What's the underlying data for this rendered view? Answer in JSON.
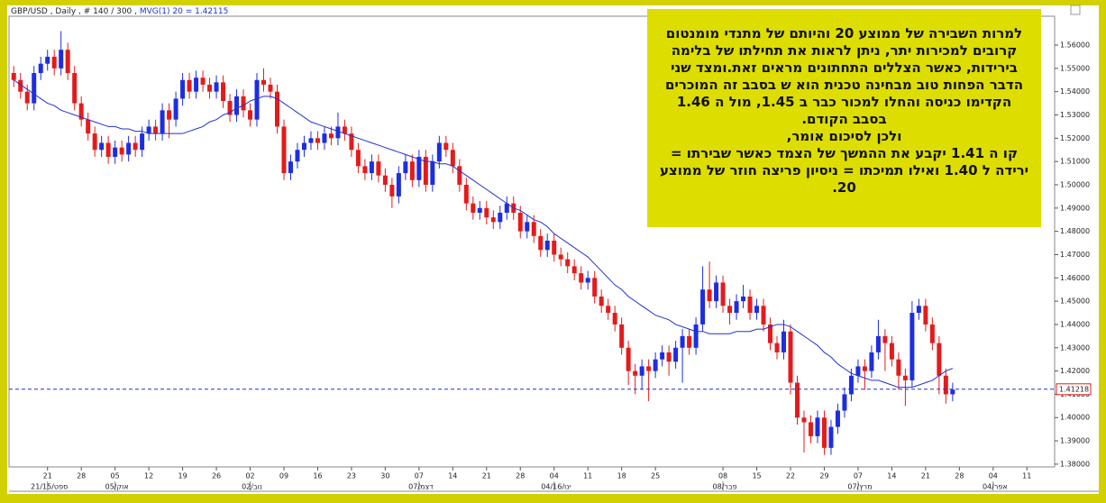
{
  "chart_data": {
    "type": "candlestick",
    "header": "GBP/USD , Daily , # 140 / 300 , ",
    "indicator_label": "MVG(1) 20 = 1.42115",
    "up_color": "#1c2ee0",
    "down_color": "#e41b1b",
    "ma_color": "#2030d0",
    "xlim": [
      -0.7,
      154.1
    ],
    "ylim": [
      1.3788,
      1.5724
    ],
    "yticks": [
      {
        "value": 1.38,
        "label": "1.38000"
      },
      {
        "value": 1.39,
        "label": "1.39000"
      },
      {
        "value": 1.4,
        "label": "1.40000"
      },
      {
        "value": 1.41,
        "label": "1.41000"
      },
      {
        "value": 1.42,
        "label": "1.42000"
      },
      {
        "value": 1.43,
        "label": "1.43000"
      },
      {
        "value": 1.44,
        "label": "1.44000"
      },
      {
        "value": 1.45,
        "label": "1.45000"
      },
      {
        "value": 1.46,
        "label": "1.46000"
      },
      {
        "value": 1.47,
        "label": "1.47000"
      },
      {
        "value": 1.48,
        "label": "1.48000"
      },
      {
        "value": 1.49,
        "label": "1.49000"
      },
      {
        "value": 1.5,
        "label": "1.50000"
      },
      {
        "value": 1.51,
        "label": "1.51000"
      },
      {
        "value": 1.52,
        "label": "1.52000"
      },
      {
        "value": 1.53,
        "label": "1.53000"
      },
      {
        "value": 1.54,
        "label": "1.54000"
      },
      {
        "value": 1.55,
        "label": "1.55000"
      },
      {
        "value": 1.56,
        "label": "1.56000"
      }
    ],
    "xticks": [
      {
        "value": 5,
        "label": "21"
      },
      {
        "value": 10,
        "label": "28"
      },
      {
        "value": 15,
        "label": "05"
      },
      {
        "value": 20,
        "label": "12"
      },
      {
        "value": 25,
        "label": "19"
      },
      {
        "value": 30,
        "label": "26"
      },
      {
        "value": 35,
        "label": "02"
      },
      {
        "value": 40,
        "label": "09"
      },
      {
        "value": 45,
        "label": "16"
      },
      {
        "value": 50,
        "label": "23"
      },
      {
        "value": 55,
        "label": "30"
      },
      {
        "value": 60,
        "label": "07"
      },
      {
        "value": 65,
        "label": "14"
      },
      {
        "value": 70,
        "label": "21"
      },
      {
        "value": 75,
        "label": "28"
      },
      {
        "value": 80,
        "label": "04"
      },
      {
        "value": 85,
        "label": "11"
      },
      {
        "value": 90,
        "label": "18"
      },
      {
        "value": 95,
        "label": "25"
      },
      {
        "value": 105,
        "label": "08"
      },
      {
        "value": 110,
        "label": "15"
      },
      {
        "value": 115,
        "label": "22"
      },
      {
        "value": 120,
        "label": "29"
      },
      {
        "value": 125,
        "label": "07"
      },
      {
        "value": 130,
        "label": "14"
      },
      {
        "value": 135,
        "label": "21"
      },
      {
        "value": 140,
        "label": "28"
      },
      {
        "value": 145,
        "label": "04"
      },
      {
        "value": 150,
        "label": "11"
      }
    ],
    "month_labels": [
      {
        "value": 5,
        "label": "21/15/ספט"
      },
      {
        "value": 15,
        "label": "05/אוק"
      },
      {
        "value": 35,
        "label": "02/נוב"
      },
      {
        "value": 60,
        "label": "07/דצמ"
      },
      {
        "value": 80,
        "label": "04/16/ינו"
      },
      {
        "value": 105,
        "label": "08/פבר"
      },
      {
        "value": 125,
        "label": "07/מרץ"
      },
      {
        "value": 145,
        "label": "04/אפר"
      }
    ],
    "last_price": {
      "value": 1.41218,
      "label": "1.41218"
    },
    "candles": [
      [
        1.548,
        1.551,
        1.542,
        1.545
      ],
      [
        1.545,
        1.548,
        1.537,
        1.54
      ],
      [
        1.54,
        1.543,
        1.532,
        1.535
      ],
      [
        1.535,
        1.551,
        1.532,
        1.548
      ],
      [
        1.548,
        1.555,
        1.545,
        1.552
      ],
      [
        1.552,
        1.558,
        1.549,
        1.555
      ],
      [
        1.555,
        1.558,
        1.547,
        1.55
      ],
      [
        1.55,
        1.566,
        1.547,
        1.558
      ],
      [
        1.558,
        1.561,
        1.545,
        1.548
      ],
      [
        1.548,
        1.551,
        1.532,
        1.535
      ],
      [
        1.535,
        1.538,
        1.525,
        1.528
      ],
      [
        1.528,
        1.531,
        1.519,
        1.522
      ],
      [
        1.522,
        1.525,
        1.512,
        1.515
      ],
      [
        1.515,
        1.521,
        1.512,
        1.518
      ],
      [
        1.518,
        1.521,
        1.509,
        1.512
      ],
      [
        1.512,
        1.519,
        1.509,
        1.516
      ],
      [
        1.516,
        1.519,
        1.51,
        1.513
      ],
      [
        1.513,
        1.521,
        1.51,
        1.518
      ],
      [
        1.518,
        1.521,
        1.512,
        1.515
      ],
      [
        1.515,
        1.525,
        1.512,
        1.522
      ],
      [
        1.522,
        1.528,
        1.519,
        1.525
      ],
      [
        1.525,
        1.528,
        1.519,
        1.522
      ],
      [
        1.522,
        1.535,
        1.519,
        1.532
      ],
      [
        1.532,
        1.535,
        1.52,
        1.528
      ],
      [
        1.528,
        1.54,
        1.525,
        1.537
      ],
      [
        1.537,
        1.548,
        1.534,
        1.545
      ],
      [
        1.545,
        1.548,
        1.537,
        1.54
      ],
      [
        1.54,
        1.549,
        1.537,
        1.546
      ],
      [
        1.546,
        1.549,
        1.54,
        1.543
      ],
      [
        1.543,
        1.546,
        1.537,
        1.54
      ],
      [
        1.54,
        1.547,
        1.537,
        1.544
      ],
      [
        1.544,
        1.547,
        1.533,
        1.536
      ],
      [
        1.536,
        1.539,
        1.527,
        1.53
      ],
      [
        1.53,
        1.541,
        1.527,
        1.538
      ],
      [
        1.538,
        1.541,
        1.529,
        1.532
      ],
      [
        1.532,
        1.535,
        1.525,
        1.528
      ],
      [
        1.528,
        1.548,
        1.525,
        1.545
      ],
      [
        1.545,
        1.55,
        1.54,
        1.543
      ],
      [
        1.543,
        1.546,
        1.537,
        1.54
      ],
      [
        1.54,
        1.543,
        1.522,
        1.525
      ],
      [
        1.525,
        1.528,
        1.502,
        1.505
      ],
      [
        1.505,
        1.513,
        1.502,
        1.51
      ],
      [
        1.51,
        1.518,
        1.507,
        1.515
      ],
      [
        1.515,
        1.521,
        1.512,
        1.518
      ],
      [
        1.518,
        1.523,
        1.515,
        1.52
      ],
      [
        1.52,
        1.523,
        1.515,
        1.518
      ],
      [
        1.518,
        1.525,
        1.515,
        1.522
      ],
      [
        1.522,
        1.525,
        1.517,
        1.52
      ],
      [
        1.52,
        1.531,
        1.517,
        1.525
      ],
      [
        1.525,
        1.528,
        1.519,
        1.522
      ],
      [
        1.522,
        1.525,
        1.512,
        1.515
      ],
      [
        1.515,
        1.518,
        1.505,
        1.508
      ],
      [
        1.508,
        1.511,
        1.502,
        1.505
      ],
      [
        1.505,
        1.513,
        1.502,
        1.51
      ],
      [
        1.51,
        1.513,
        1.501,
        1.504
      ],
      [
        1.504,
        1.507,
        1.497,
        1.5
      ],
      [
        1.5,
        1.503,
        1.49,
        1.495
      ],
      [
        1.495,
        1.508,
        1.492,
        1.505
      ],
      [
        1.505,
        1.513,
        1.502,
        1.51
      ],
      [
        1.51,
        1.513,
        1.499,
        1.502
      ],
      [
        1.502,
        1.515,
        1.499,
        1.512
      ],
      [
        1.512,
        1.515,
        1.497,
        1.5
      ],
      [
        1.5,
        1.513,
        1.497,
        1.51
      ],
      [
        1.51,
        1.521,
        1.507,
        1.518
      ],
      [
        1.518,
        1.521,
        1.512,
        1.515
      ],
      [
        1.515,
        1.518,
        1.505,
        1.508
      ],
      [
        1.508,
        1.511,
        1.497,
        1.5
      ],
      [
        1.5,
        1.503,
        1.489,
        1.492
      ],
      [
        1.492,
        1.495,
        1.485,
        1.488
      ],
      [
        1.488,
        1.493,
        1.485,
        1.49
      ],
      [
        1.49,
        1.493,
        1.483,
        1.486
      ],
      [
        1.486,
        1.489,
        1.481,
        1.484
      ],
      [
        1.484,
        1.491,
        1.481,
        1.488
      ],
      [
        1.488,
        1.495,
        1.485,
        1.492
      ],
      [
        1.492,
        1.495,
        1.485,
        1.488
      ],
      [
        1.488,
        1.491,
        1.477,
        1.48
      ],
      [
        1.48,
        1.487,
        1.477,
        1.484
      ],
      [
        1.484,
        1.487,
        1.475,
        1.478
      ],
      [
        1.478,
        1.481,
        1.469,
        1.472
      ],
      [
        1.472,
        1.479,
        1.469,
        1.476
      ],
      [
        1.476,
        1.479,
        1.467,
        1.47
      ],
      [
        1.47,
        1.473,
        1.465,
        1.468
      ],
      [
        1.468,
        1.471,
        1.462,
        1.465
      ],
      [
        1.465,
        1.468,
        1.459,
        1.462
      ],
      [
        1.462,
        1.465,
        1.455,
        1.458
      ],
      [
        1.458,
        1.463,
        1.455,
        1.46
      ],
      [
        1.46,
        1.463,
        1.449,
        1.452
      ],
      [
        1.452,
        1.455,
        1.445,
        1.448
      ],
      [
        1.448,
        1.451,
        1.442,
        1.445
      ],
      [
        1.445,
        1.448,
        1.437,
        1.44
      ],
      [
        1.44,
        1.443,
        1.427,
        1.43
      ],
      [
        1.43,
        1.433,
        1.414,
        1.42
      ],
      [
        1.42,
        1.423,
        1.41,
        1.418
      ],
      [
        1.418,
        1.425,
        1.412,
        1.422
      ],
      [
        1.422,
        1.425,
        1.407,
        1.42
      ],
      [
        1.42,
        1.428,
        1.417,
        1.425
      ],
      [
        1.425,
        1.431,
        1.422,
        1.428
      ],
      [
        1.428,
        1.431,
        1.418,
        1.424
      ],
      [
        1.424,
        1.433,
        1.421,
        1.43
      ],
      [
        1.43,
        1.438,
        1.415,
        1.435
      ],
      [
        1.435,
        1.438,
        1.427,
        1.43
      ],
      [
        1.43,
        1.443,
        1.427,
        1.44
      ],
      [
        1.44,
        1.465,
        1.437,
        1.455
      ],
      [
        1.455,
        1.467,
        1.447,
        1.45
      ],
      [
        1.45,
        1.461,
        1.447,
        1.458
      ],
      [
        1.458,
        1.461,
        1.445,
        1.448
      ],
      [
        1.448,
        1.451,
        1.44,
        1.445
      ],
      [
        1.445,
        1.453,
        1.442,
        1.45
      ],
      [
        1.45,
        1.457,
        1.447,
        1.452
      ],
      [
        1.452,
        1.455,
        1.442,
        1.445
      ],
      [
        1.445,
        1.451,
        1.442,
        1.448
      ],
      [
        1.448,
        1.451,
        1.437,
        1.44
      ],
      [
        1.44,
        1.443,
        1.429,
        1.432
      ],
      [
        1.432,
        1.435,
        1.425,
        1.428
      ],
      [
        1.428,
        1.442,
        1.425,
        1.437
      ],
      [
        1.437,
        1.44,
        1.41,
        1.415
      ],
      [
        1.415,
        1.418,
        1.397,
        1.4
      ],
      [
        1.4,
        1.403,
        1.385,
        1.398
      ],
      [
        1.398,
        1.401,
        1.389,
        1.392
      ],
      [
        1.392,
        1.403,
        1.389,
        1.4
      ],
      [
        1.4,
        1.403,
        1.384,
        1.387
      ],
      [
        1.387,
        1.399,
        1.384,
        1.396
      ],
      [
        1.396,
        1.406,
        1.393,
        1.403
      ],
      [
        1.403,
        1.413,
        1.4,
        1.41
      ],
      [
        1.41,
        1.421,
        1.407,
        1.418
      ],
      [
        1.418,
        1.425,
        1.415,
        1.422
      ],
      [
        1.422,
        1.425,
        1.412,
        1.42
      ],
      [
        1.42,
        1.431,
        1.417,
        1.428
      ],
      [
        1.428,
        1.442,
        1.425,
        1.435
      ],
      [
        1.435,
        1.438,
        1.42,
        1.432
      ],
      [
        1.432,
        1.435,
        1.422,
        1.425
      ],
      [
        1.425,
        1.428,
        1.412,
        1.418
      ],
      [
        1.418,
        1.421,
        1.405,
        1.416
      ],
      [
        1.416,
        1.45,
        1.413,
        1.445
      ],
      [
        1.445,
        1.451,
        1.442,
        1.448
      ],
      [
        1.448,
        1.451,
        1.437,
        1.44
      ],
      [
        1.44,
        1.443,
        1.429,
        1.432
      ],
      [
        1.432,
        1.435,
        1.41,
        1.418
      ],
      [
        1.418,
        1.421,
        1.406,
        1.41
      ],
      [
        1.41,
        1.415,
        1.407,
        1.412
      ]
    ],
    "ma": [
      1.545,
      1.543,
      1.541,
      1.539,
      1.537,
      1.535,
      1.534,
      1.532,
      1.531,
      1.53,
      1.529,
      1.528,
      1.527,
      1.526,
      1.525,
      1.525,
      1.524,
      1.524,
      1.523,
      1.523,
      1.522,
      1.522,
      1.522,
      1.522,
      1.522,
      1.522,
      1.523,
      1.524,
      1.525,
      1.527,
      1.528,
      1.53,
      1.531,
      1.533,
      1.534,
      1.536,
      1.537,
      1.538,
      1.538,
      1.537,
      1.535,
      1.533,
      1.531,
      1.529,
      1.527,
      1.526,
      1.525,
      1.524,
      1.523,
      1.522,
      1.521,
      1.52,
      1.519,
      1.518,
      1.517,
      1.516,
      1.515,
      1.514,
      1.513,
      1.512,
      1.511,
      1.51,
      1.51,
      1.509,
      1.509,
      1.508,
      1.506,
      1.504,
      1.502,
      1.5,
      1.498,
      1.496,
      1.494,
      1.492,
      1.49,
      1.489,
      1.487,
      1.485,
      1.484,
      1.482,
      1.479,
      1.477,
      1.475,
      1.473,
      1.471,
      1.469,
      1.466,
      1.463,
      1.46,
      1.457,
      1.455,
      1.452,
      1.45,
      1.448,
      1.446,
      1.444,
      1.443,
      1.442,
      1.44,
      1.439,
      1.438,
      1.437,
      1.437,
      1.436,
      1.436,
      1.436,
      1.436,
      1.437,
      1.437,
      1.437,
      1.438,
      1.438,
      1.439,
      1.44,
      1.44,
      1.439,
      1.437,
      1.435,
      1.433,
      1.431,
      1.428,
      1.426,
      1.423,
      1.421,
      1.419,
      1.418,
      1.417,
      1.416,
      1.416,
      1.415,
      1.414,
      1.413,
      1.413,
      1.413,
      1.414,
      1.415,
      1.416,
      1.418,
      1.42,
      1.42115
    ],
    "annotation": [
      "למרות השבירה של ממוצע 20 והיותם של מתנדי מומנטום",
      "קרובים למכירות יתר, ניתן לראות את תחילתו של בלימה",
      "בירידות, כאשר הצללים התחתונים מראים זאת.ומצד שני",
      "הדבר הפחות טוב מבחינה טכנית הוא ש בסבב זה המוכרים",
      "הקדימו כניסה והחלו למכור כבר ב 1.45, מול ה 1.46",
      "בסבב הקודם.",
      "ולכן לסיכום אומר,",
      "קו ה 1.41 יקבע את ההמשך של הצמד כאשר שבירתו =",
      "ירידה ל 1.40 ואילו תמיכתו = ניסיון פריצה חוזר של ממוצע",
      "20."
    ]
  }
}
